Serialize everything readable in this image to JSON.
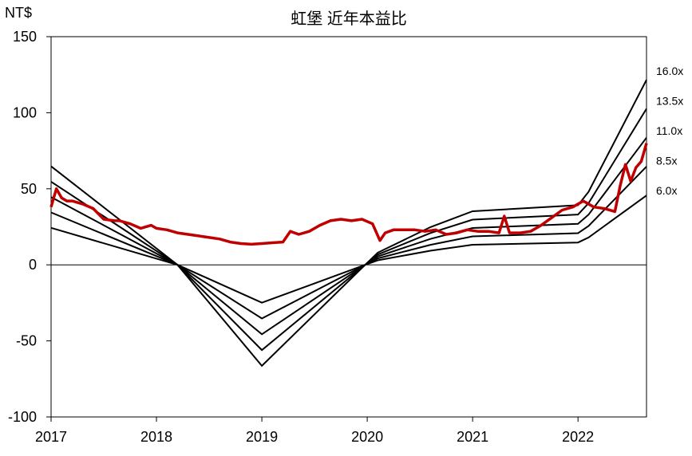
{
  "chart_data": {
    "type": "line",
    "title": "虹堡 近年本益比",
    "ylabel": "NT$",
    "ylim": [
      -100,
      150
    ],
    "yticks": [
      150,
      100,
      50,
      0,
      -50,
      -100
    ],
    "xlim": [
      2017.0,
      2022.65
    ],
    "xticks": [
      "2017",
      "2018",
      "2019",
      "2020",
      "2021",
      "2022"
    ],
    "grid": false,
    "colors": {
      "price": "#c00000",
      "band": "#000000",
      "axis": "#000000"
    },
    "bands": [
      {
        "name": "16.0x",
        "multiple": 16.0
      },
      {
        "name": "13.5x",
        "multiple": 13.5
      },
      {
        "name": "11.0x",
        "multiple": 11.0
      },
      {
        "name": "8.5x",
        "multiple": 8.5
      },
      {
        "name": "6.0x",
        "multiple": 6.0
      }
    ],
    "eps_series": {
      "x": [
        2017.0,
        2018.2,
        2019.0,
        2019.98,
        2020.1,
        2020.6,
        2021.0,
        2022.0,
        2022.1,
        2022.65
      ],
      "eps": [
        4.05,
        0.0,
        -4.15,
        0.0,
        0.5,
        1.55,
        2.2,
        2.45,
        3.0,
        7.6
      ]
    },
    "price_series": {
      "name": "",
      "x": [
        2017.0,
        2017.05,
        2017.1,
        2017.15,
        2017.2,
        2017.3,
        2017.4,
        2017.5,
        2017.6,
        2017.65,
        2017.75,
        2017.85,
        2017.95,
        2018.0,
        2018.1,
        2018.2,
        2018.3,
        2018.4,
        2018.5,
        2018.6,
        2018.7,
        2018.8,
        2018.9,
        2019.0,
        2019.1,
        2019.2,
        2019.27,
        2019.35,
        2019.45,
        2019.55,
        2019.65,
        2019.75,
        2019.85,
        2019.95,
        2020.05,
        2020.12,
        2020.17,
        2020.25,
        2020.35,
        2020.45,
        2020.55,
        2020.65,
        2020.75,
        2020.85,
        2020.95,
        2021.05,
        2021.15,
        2021.25,
        2021.3,
        2021.35,
        2021.45,
        2021.55,
        2021.65,
        2021.75,
        2021.85,
        2021.95,
        2022.05,
        2022.15,
        2022.25,
        2022.35,
        2022.4,
        2022.45,
        2022.5,
        2022.55,
        2022.6,
        2022.65
      ],
      "values": [
        38,
        50,
        44,
        42,
        42,
        40,
        37,
        30,
        29,
        29,
        27,
        24,
        26,
        24,
        23,
        21,
        20,
        19,
        18,
        17,
        15,
        14,
        13.5,
        14,
        14.5,
        15,
        22,
        20,
        22,
        26,
        29,
        30,
        29,
        30,
        27,
        16,
        21,
        23,
        23,
        23,
        22,
        23,
        20,
        21,
        23,
        22,
        22,
        21,
        32,
        21,
        21,
        22,
        26,
        31,
        36,
        38,
        42,
        38,
        37,
        35,
        52,
        66,
        55,
        64,
        68,
        80
      ]
    }
  }
}
